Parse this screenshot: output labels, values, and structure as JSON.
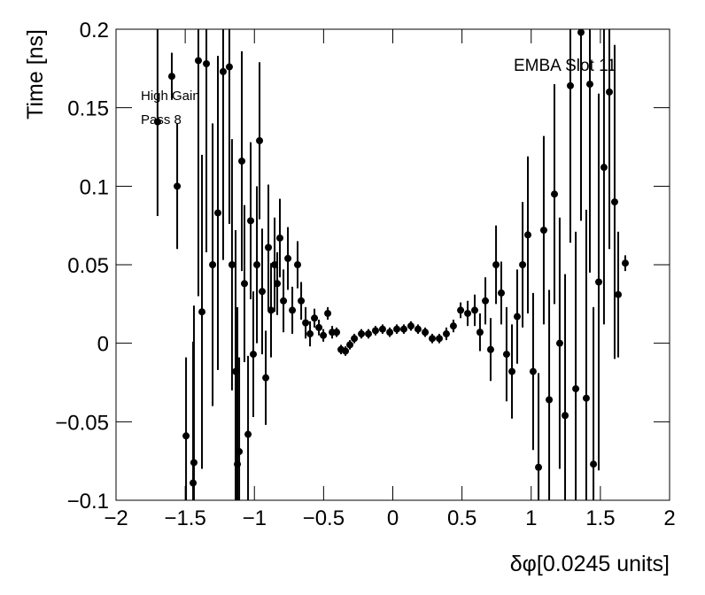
{
  "chart_data": {
    "type": "scatter",
    "x_label": "δφ[0.0245 units]",
    "y_label": "Time [ns]",
    "annotations": [
      "EMBA Slot 11",
      "High Gain",
      "Pass 8"
    ],
    "xlim": [
      -2,
      2
    ],
    "ylim": [
      -0.1,
      0.2
    ],
    "xticks": [
      {
        "value": -2,
        "label": "−2"
      },
      {
        "value": -1.5,
        "label": "−1.5"
      },
      {
        "value": -1,
        "label": "−1"
      },
      {
        "value": -0.5,
        "label": "−0.5"
      },
      0,
      0.5,
      1,
      1.5,
      2
    ],
    "yticks": [
      {
        "value": -0.1,
        "label": "−0.1"
      },
      {
        "value": -0.05,
        "label": "−0.05"
      },
      0,
      0.05,
      0.1,
      0.15,
      0.2
    ],
    "series": [
      {
        "color": "#000000",
        "x": [
          -1.7,
          -1.597,
          -1.558,
          -1.494,
          -1.443,
          -1.437,
          -1.405,
          -1.379,
          -1.347,
          -1.302,
          -1.264,
          -1.226,
          -1.181,
          -1.162,
          -1.136,
          -1.123,
          -1.11,
          -1.091,
          -1.072,
          -1.046,
          -1.027,
          -1.008,
          -0.982,
          -0.963,
          -0.944,
          -0.918,
          -0.899,
          -0.88,
          -0.854,
          -0.835,
          -0.816,
          -0.79,
          -0.758,
          -0.726,
          -0.688,
          -0.662,
          -0.63,
          -0.598,
          -0.566,
          -0.534,
          -0.502,
          -0.47,
          -0.438,
          -0.406,
          -0.374,
          -0.342,
          -0.31,
          -0.278,
          -0.227,
          -0.176,
          -0.125,
          -0.074,
          -0.022,
          0.029,
          0.08,
          0.131,
          0.182,
          0.234,
          0.285,
          0.336,
          0.387,
          0.438,
          0.49,
          0.541,
          0.592,
          0.63,
          0.669,
          0.707,
          0.746,
          0.784,
          0.822,
          0.861,
          0.899,
          0.938,
          0.976,
          1.014,
          1.053,
          1.091,
          1.13,
          1.168,
          1.206,
          1.245,
          1.283,
          1.322,
          1.36,
          1.398,
          1.424,
          1.45,
          1.488,
          1.526,
          1.565,
          1.603,
          1.629,
          1.68
        ],
        "values": [
          0.141,
          0.17,
          0.1,
          -0.059,
          -0.089,
          -0.076,
          0.18,
          0.02,
          0.178,
          0.05,
          0.083,
          0.173,
          0.176,
          0.05,
          -0.018,
          -0.077,
          -0.069,
          0.116,
          0.038,
          -0.058,
          0.078,
          -0.007,
          0.05,
          0.129,
          0.033,
          -0.022,
          0.061,
          0.021,
          0.05,
          0.038,
          0.067,
          0.027,
          0.054,
          0.021,
          0.05,
          0.027,
          0.013,
          0.006,
          0.016,
          0.01,
          0.005,
          0.019,
          0.007,
          0.007,
          -0.004,
          -0.005,
          -0.001,
          0.003,
          0.006,
          0.006,
          0.008,
          0.009,
          0.007,
          0.009,
          0.009,
          0.011,
          0.009,
          0.007,
          0.003,
          0.003,
          0.006,
          0.011,
          0.021,
          0.019,
          0.021,
          0.007,
          0.027,
          -0.004,
          0.05,
          0.032,
          -0.007,
          -0.018,
          0.017,
          0.05,
          0.069,
          -0.018,
          -0.079,
          0.072,
          -0.036,
          0.095,
          0,
          -0.046,
          0.164,
          -0.029,
          0.198,
          -0.035,
          0.165,
          -0.077,
          0.039,
          0.112,
          0.16,
          0.09,
          0.031,
          0.051
        ],
        "errors": [
          0.06,
          0.015,
          0.04,
          0.05,
          0.09,
          0.1,
          0.15,
          0.1,
          0.12,
          0.09,
          0.1,
          0.12,
          0.1,
          0.08,
          0.09,
          0.1,
          0.06,
          0.07,
          0.05,
          0.05,
          0.05,
          0.04,
          0.05,
          0.05,
          0.04,
          0.03,
          0.04,
          0.03,
          0.03,
          0.02,
          0.025,
          0.02,
          0.02,
          0.015,
          0.015,
          0.012,
          0.01,
          0.008,
          0.006,
          0.005,
          0.004,
          0.004,
          0.004,
          0.003,
          0.003,
          0.003,
          0.003,
          0.003,
          0.003,
          0.003,
          0.003,
          0.003,
          0.003,
          0.003,
          0.003,
          0.003,
          0.003,
          0.003,
          0.003,
          0.003,
          0.004,
          0.004,
          0.005,
          0.008,
          0.01,
          0.012,
          0.015,
          0.02,
          0.025,
          0.02,
          0.03,
          0.03,
          0.03,
          0.04,
          0.05,
          0.05,
          0.06,
          0.06,
          0.07,
          0.07,
          0.08,
          0.09,
          0.1,
          0.1,
          0.12,
          0.12,
          0.12,
          0.1,
          0.12,
          0.1,
          0.1,
          0.1,
          0.04,
          0.005
        ]
      }
    ]
  }
}
